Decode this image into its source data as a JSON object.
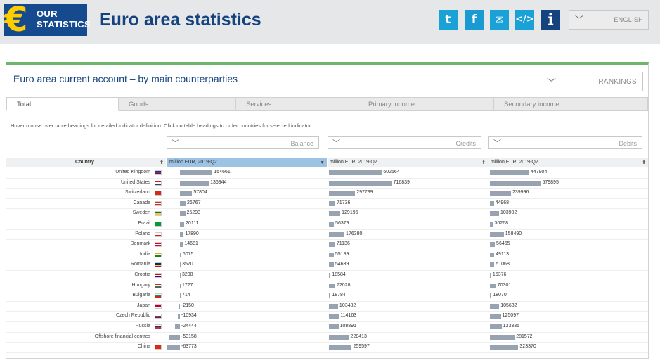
{
  "header": {
    "logo_symbol": "€",
    "logo_line1": "OUR",
    "logo_line2": "STATISTICS",
    "title": "Euro area statistics",
    "social": [
      {
        "name": "twitter-icon",
        "glyph": "t"
      },
      {
        "name": "facebook-icon",
        "glyph": "f"
      },
      {
        "name": "mail-icon",
        "glyph": "✉"
      },
      {
        "name": "embed-icon",
        "glyph": "</>"
      },
      {
        "name": "info-icon",
        "glyph": "i"
      }
    ],
    "language": "ENGLISH"
  },
  "panel": {
    "title": "Euro area current account – by main counterparties",
    "rankings": "RANKINGS",
    "tabs": [
      "Total",
      "Goods",
      "Services",
      "Primary income",
      "Secondary income"
    ],
    "active_tab": 0,
    "hint": "Hover mouse over table headings for detailed indicator definition. Click on table headings to order countries for selected indicator.",
    "dropdowns": [
      "Balance",
      "Credits",
      "Debits"
    ]
  },
  "colors": {
    "accent": "#6db56d",
    "brand": "#14437f",
    "bar": "#97a3b0",
    "selected_header": "#9cc3e4"
  },
  "table": {
    "headers": {
      "country": "Country",
      "balance": "million EUR, 2019-Q2",
      "credits": "million EUR, 2019-Q2",
      "debits": "million EUR, 2019-Q2"
    },
    "rows": [
      {
        "country": "United Kingdom",
        "flag": "gb-flag-icon",
        "balance": 154661,
        "credits": 602564,
        "debits": 447904
      },
      {
        "country": "United States",
        "flag": "us-flag-icon",
        "balance": 136944,
        "credits": 716839,
        "debits": 579895
      },
      {
        "country": "Switzerland",
        "flag": "ch-flag-icon",
        "balance": 57804,
        "credits": 297799,
        "debits": 239996
      },
      {
        "country": "Canada",
        "flag": "ca-flag-icon",
        "balance": 26767,
        "credits": 71736,
        "debits": 44968
      },
      {
        "country": "Sweden",
        "flag": "se-flag-icon",
        "balance": 25293,
        "credits": 129195,
        "debits": 103902
      },
      {
        "country": "Brazil",
        "flag": "br-flag-icon",
        "balance": 20111,
        "credits": 56379,
        "debits": 36268
      },
      {
        "country": "Poland",
        "flag": "pl-flag-icon",
        "balance": 17890,
        "credits": 176380,
        "debits": 158490
      },
      {
        "country": "Denmark",
        "flag": "dk-flag-icon",
        "balance": 14681,
        "credits": 71136,
        "debits": 56455
      },
      {
        "country": "India",
        "flag": "in-flag-icon",
        "balance": 6075,
        "credits": 55189,
        "debits": 49113
      },
      {
        "country": "Romania",
        "flag": "ro-flag-icon",
        "balance": 3570,
        "credits": 54639,
        "debits": 51068
      },
      {
        "country": "Croatia",
        "flag": "hr-flag-icon",
        "balance": 3208,
        "credits": 18584,
        "debits": 15376
      },
      {
        "country": "Hungary",
        "flag": "hu-flag-icon",
        "balance": 1727,
        "credits": 72028,
        "debits": 70301
      },
      {
        "country": "Bulgaria",
        "flag": "bg-flag-icon",
        "balance": 714,
        "credits": 18784,
        "debits": 18070
      },
      {
        "country": "Japan",
        "flag": "jp-flag-icon",
        "balance": -2150,
        "credits": 103482,
        "debits": 105632
      },
      {
        "country": "Czech Republic",
        "flag": "cz-flag-icon",
        "balance": -10934,
        "credits": 114163,
        "debits": 125097
      },
      {
        "country": "Russia",
        "flag": "ru-flag-icon",
        "balance": -24444,
        "credits": 108891,
        "debits": 133335
      },
      {
        "country": "Offshore financial centres",
        "flag": "",
        "balance": -53158,
        "credits": 228413,
        "debits": 281572
      },
      {
        "country": "China",
        "flag": "cn-flag-icon",
        "balance": -63773,
        "credits": 259597,
        "debits": 323370
      }
    ]
  }
}
